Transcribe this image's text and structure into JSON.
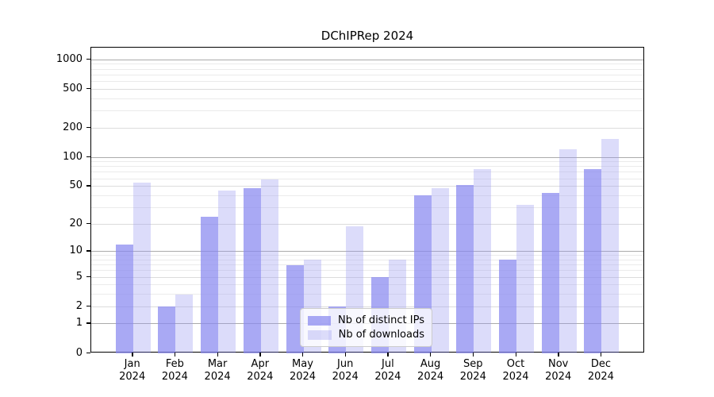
{
  "chart_data": {
    "type": "bar",
    "title": "DChIPRep 2024",
    "xlabel": "",
    "ylabel": "",
    "y_scale": "log10(1+y)",
    "ylim": [
      0,
      1330
    ],
    "grid": true,
    "legend_position": "inside bottom-center",
    "categories": [
      "Jan",
      "Feb",
      "Mar",
      "Apr",
      "May",
      "Jun",
      "Jul",
      "Aug",
      "Sep",
      "Oct",
      "Nov",
      "Dec"
    ],
    "x_year_label": "2024",
    "yticks": [
      0,
      1,
      2,
      5,
      10,
      20,
      50,
      100,
      200,
      500,
      1000
    ],
    "minor_yticks": [
      3,
      4,
      6,
      7,
      8,
      9,
      30,
      40,
      60,
      70,
      80,
      90,
      300,
      400,
      600,
      700,
      800,
      900
    ],
    "series": [
      {
        "name": "Nb of distinct IPs",
        "color": "#8888f0",
        "alpha": 0.72,
        "values": [
          12,
          2,
          24,
          48,
          7,
          2,
          5,
          40,
          52,
          8,
          43,
          75
        ]
      },
      {
        "name": "Nb of downloads",
        "color": "#9a9af0",
        "alpha": 0.35,
        "values": [
          55,
          3,
          45,
          59,
          8,
          19,
          8,
          48,
          75,
          32,
          120,
          155
        ]
      }
    ]
  },
  "colors": {
    "grid_major": "#ababab",
    "grid_minor": "#ebebeb",
    "axis": "#000000",
    "background": "#ffffff"
  }
}
